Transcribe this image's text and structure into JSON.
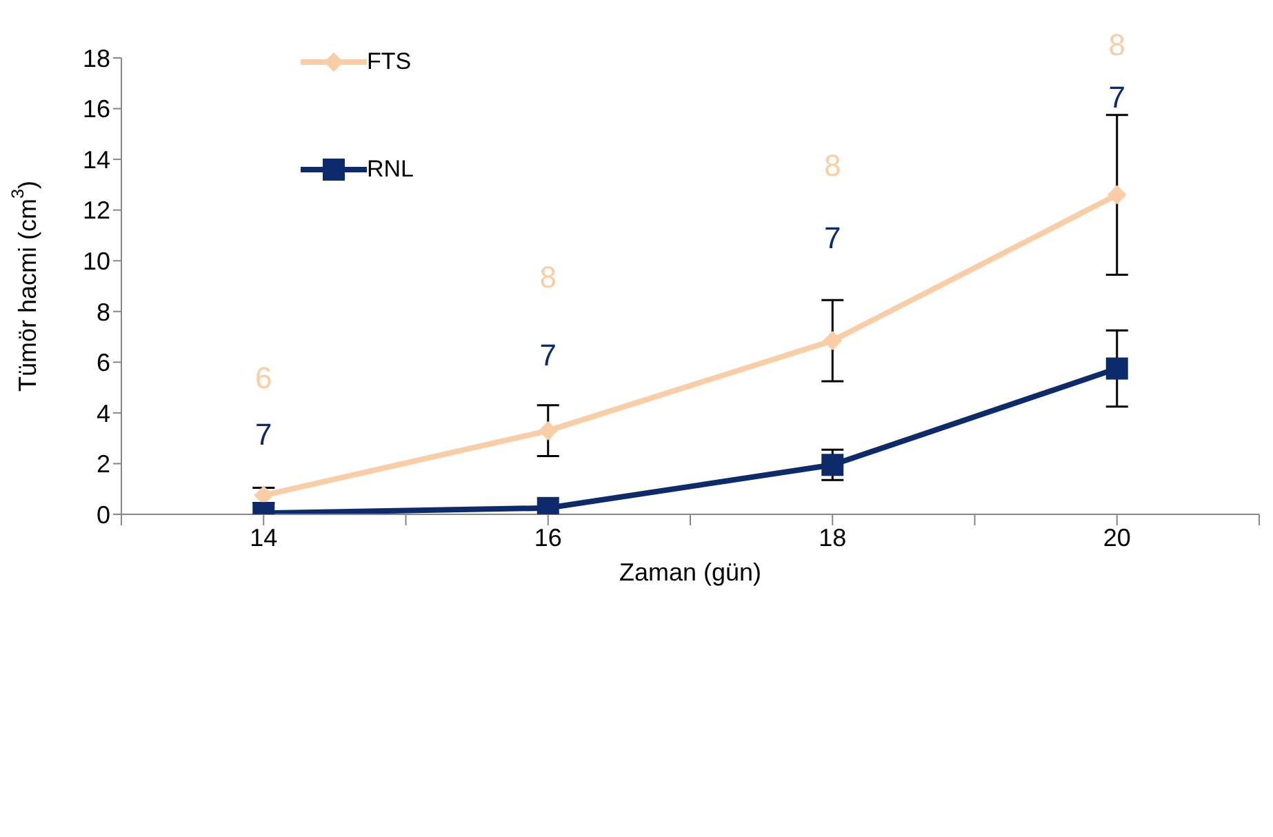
{
  "chart_data": {
    "type": "line",
    "xlabel": "Zaman (gün)",
    "ylabel": "Tümör hacmi (cm$^{3}$)",
    "x": [
      14,
      16,
      18,
      20
    ],
    "series": [
      {
        "name": "FTS",
        "color": "#f9cda6",
        "marker": "diamond",
        "values": [
          0.75,
          3.3,
          6.85,
          12.6
        ],
        "errors": [
          0.3,
          1.0,
          1.6,
          3.15
        ]
      },
      {
        "name": "RNL",
        "color": "#0d2a6b",
        "marker": "square",
        "values": [
          0.05,
          0.25,
          1.95,
          5.75
        ],
        "errors": [
          null,
          null,
          0.6,
          1.5
        ]
      }
    ],
    "xlim": [
      13,
      21
    ],
    "xticks": [
      {
        "value": 13,
        "label": null
      },
      14,
      {
        "value": 15,
        "label": null
      },
      16,
      {
        "value": 17,
        "label": null
      },
      18,
      {
        "value": 19,
        "label": null
      },
      20,
      {
        "value": 21,
        "label": null
      }
    ],
    "ylim": [
      0,
      18
    ],
    "yticks": [
      0,
      2,
      4,
      6,
      8,
      10,
      12,
      14,
      16,
      18
    ],
    "grid": false,
    "legend": "top left",
    "line_style": "solid",
    "annotations": [
      "6",
      "7",
      "8",
      "7",
      "8",
      "7",
      "8",
      "7"
    ]
  }
}
